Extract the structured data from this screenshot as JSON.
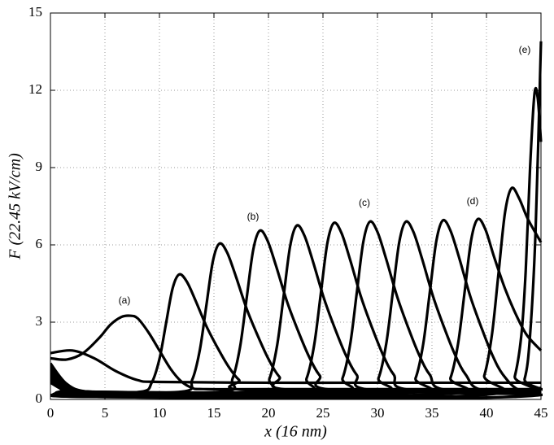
{
  "chart_data": {
    "type": "line",
    "xlabel": "x (16 nm)",
    "ylabel": "F (22.45 kV/cm)",
    "xlim": [
      0,
      45
    ],
    "ylim": [
      0,
      15
    ],
    "xticks": [
      0,
      5,
      10,
      15,
      20,
      25,
      30,
      35,
      40,
      45
    ],
    "yticks": [
      0,
      3,
      6,
      9,
      12,
      15
    ],
    "grid": true,
    "annotations": [
      "(a)",
      "(b)",
      "(c)",
      "(d)",
      "(e)"
    ],
    "series": [
      {
        "color": "#000000",
        "x": [
          0,
          2,
          4,
          6,
          8,
          10,
          20,
          30,
          45
        ],
        "values": [
          1.8,
          1.9,
          1.6,
          1.1,
          0.75,
          0.68,
          0.65,
          0.65,
          0.65
        ]
      },
      {
        "color": "#000000",
        "x": [
          0,
          1.5,
          3,
          4.5,
          5.5,
          6.5,
          7.3,
          8,
          9,
          10,
          11,
          12,
          13,
          14,
          20,
          45
        ],
        "values": [
          1.6,
          1.55,
          1.8,
          2.4,
          2.9,
          3.2,
          3.25,
          3.15,
          2.6,
          1.9,
          1.2,
          0.7,
          0.45,
          0.4,
          0.4,
          0.4
        ]
      },
      {
        "color": "#000000",
        "x": [
          0,
          1.5,
          3.5,
          8.3,
          9.3,
          10,
          10.6,
          11.2,
          11.8,
          12.5,
          13.3,
          14.3,
          15.3,
          16.3,
          17.3,
          18.8,
          45
        ],
        "values": [
          1.4,
          0.6,
          0.3,
          0.3,
          0.66,
          1.57,
          2.94,
          4.3,
          4.85,
          4.58,
          3.85,
          2.85,
          2.03,
          1.3,
          0.76,
          0.35,
          0.35
        ]
      },
      {
        "color": "#000000",
        "x": [
          0,
          1.5,
          3.5,
          12,
          13,
          13.7,
          14.3,
          14.9,
          15.5,
          16.2,
          17,
          18,
          19,
          20,
          21,
          22.5,
          45
        ],
        "values": [
          1.3,
          0.6,
          0.3,
          0.3,
          0.76,
          1.91,
          3.64,
          5.36,
          6.05,
          5.71,
          4.79,
          3.52,
          2.49,
          1.57,
          0.88,
          0.36,
          0.3
        ]
      },
      {
        "color": "#000000",
        "x": [
          0,
          1.5,
          3.5,
          15.7,
          16.7,
          17.4,
          18,
          18.6,
          19.2,
          19.9,
          20.7,
          21.7,
          22.7,
          23.7,
          24.7,
          26.2,
          45
        ],
        "values": [
          1.2,
          0.55,
          0.3,
          0.3,
          0.8,
          2.05,
          3.93,
          5.8,
          6.55,
          6.18,
          5.18,
          3.8,
          2.68,
          1.68,
          0.93,
          0.36,
          0.25
        ]
      },
      {
        "color": "#000000",
        "x": [
          0,
          1.5,
          3.5,
          19.1,
          20.1,
          20.8,
          21.4,
          22,
          22.6,
          23.3,
          24.1,
          25.1,
          26.1,
          27.1,
          28.1,
          29.6,
          45
        ],
        "values": [
          1.1,
          0.5,
          0.3,
          0.3,
          0.82,
          2.11,
          4.04,
          5.98,
          6.75,
          6.36,
          5.33,
          3.91,
          2.75,
          1.72,
          0.95,
          0.36,
          0.2
        ]
      },
      {
        "color": "#000000",
        "x": [
          0,
          1.5,
          3.5,
          22.5,
          23.5,
          24.2,
          24.8,
          25.4,
          26,
          26.7,
          27.5,
          28.5,
          29.5,
          30.5,
          31.5,
          33,
          45
        ],
        "values": [
          1.0,
          0.5,
          0.3,
          0.3,
          0.82,
          2.13,
          4.1,
          6.06,
          6.85,
          6.46,
          5.41,
          3.97,
          2.79,
          1.74,
          0.96,
          0.37,
          0.3
        ]
      },
      {
        "color": "#000000",
        "x": [
          0,
          1.5,
          3.5,
          25.8,
          26.8,
          27.5,
          28.1,
          28.7,
          29.3,
          30,
          30.8,
          31.8,
          32.8,
          33.8,
          34.8,
          36.3,
          45
        ],
        "values": [
          0.95,
          0.45,
          0.3,
          0.3,
          0.83,
          2.15,
          4.13,
          6.11,
          6.9,
          6.5,
          5.45,
          4.0,
          2.81,
          1.75,
          0.96,
          0.37,
          0.35
        ]
      },
      {
        "color": "#000000",
        "x": [
          0,
          1.5,
          3.5,
          29.1,
          30.1,
          30.8,
          31.4,
          32,
          32.6,
          33.3,
          34.1,
          35.1,
          36.1,
          37.1,
          38.1,
          39.6,
          45
        ],
        "values": [
          0.9,
          0.45,
          0.3,
          0.3,
          0.83,
          2.15,
          4.13,
          6.11,
          6.9,
          6.5,
          5.45,
          4.0,
          2.81,
          1.75,
          0.96,
          0.37,
          0.4
        ]
      },
      {
        "color": "#000000",
        "x": [
          0,
          1.5,
          3.5,
          32.5,
          33.5,
          34.2,
          34.8,
          35.4,
          36,
          36.7,
          37.5,
          38.5,
          39.5,
          40.5,
          41.5,
          43,
          45
        ],
        "values": [
          0.85,
          0.4,
          0.25,
          0.25,
          0.83,
          2.16,
          4.16,
          6.15,
          6.95,
          6.55,
          5.49,
          4.02,
          2.83,
          1.76,
          0.97,
          0.37,
          0.45
        ]
      },
      {
        "color": "#000000",
        "x": [
          0,
          1.5,
          3.5,
          35.7,
          36.7,
          37.4,
          38,
          38.6,
          39.2,
          39.9,
          40.7,
          41.7,
          42.7,
          43.7,
          45
        ],
        "values": [
          0.8,
          0.4,
          0.2,
          0.2,
          0.84,
          2.18,
          4.19,
          6.2,
          7.0,
          6.6,
          5.53,
          4.3,
          3.3,
          2.5,
          1.9
        ]
      },
      {
        "color": "#000000",
        "x": [
          0,
          1.5,
          3.5,
          38.8,
          39.8,
          40.5,
          41.1,
          41.7,
          42.3,
          43,
          43.8,
          45
        ],
        "values": [
          0.75,
          0.35,
          0.15,
          0.15,
          0.93,
          2.51,
          4.88,
          7.25,
          8.2,
          7.8,
          7.0,
          6.1
        ]
      },
      {
        "color": "#000000",
        "x": [
          0,
          1.5,
          3.5,
          41.8,
          42.6,
          43.2,
          43.6,
          44,
          44.4,
          44.7,
          45
        ],
        "values": [
          0.7,
          0.3,
          0.1,
          0.1,
          0.9,
          2.5,
          5.0,
          9.0,
          11.85,
          11.7,
          10.0
        ]
      },
      {
        "color": "#000000",
        "x": [
          0,
          1.5,
          3.5,
          42.5,
          43.5,
          44,
          44.5,
          45
        ],
        "values": [
          0.65,
          0.3,
          0.1,
          0.1,
          0.8,
          2.5,
          6.5,
          13.9
        ]
      }
    ]
  }
}
